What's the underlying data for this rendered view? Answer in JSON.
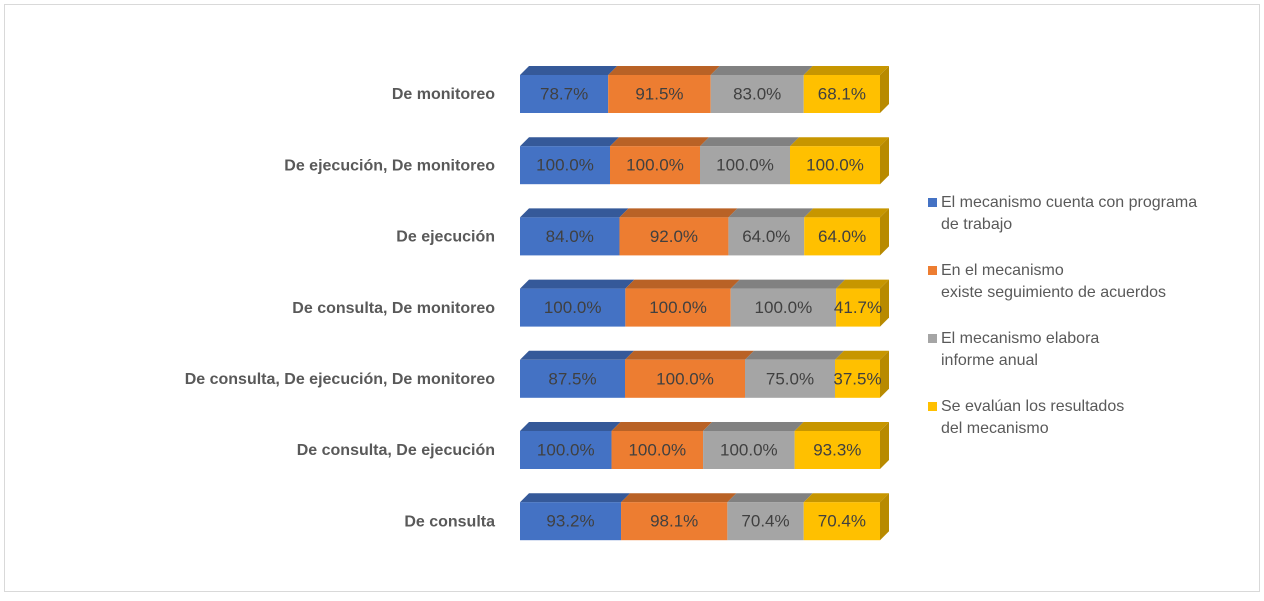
{
  "chart_data": {
    "type": "bar_stacked_100_horizontal_3d",
    "categories": [
      "De monitoreo",
      "De ejecución, De monitoreo",
      "De ejecución",
      "De consulta, De monitoreo",
      "De consulta, De ejecución, De monitoreo",
      "De consulta, De ejecución",
      "De consulta"
    ],
    "series": [
      {
        "name": "El mecanismo cuenta con programa\nde trabajo",
        "color": "#4472c4",
        "values": [
          78.7,
          100.0,
          84.0,
          100.0,
          87.5,
          100.0,
          93.2
        ],
        "value_labels": [
          "78.7%",
          "100.0%",
          "84.0%",
          "100.0%",
          "87.5%",
          "100.0%",
          "93.2%"
        ]
      },
      {
        "name": "En el mecanismo\nexiste seguimiento de acuerdos",
        "color": "#ed7d31",
        "values": [
          91.5,
          100.0,
          92.0,
          100.0,
          100.0,
          100.0,
          98.1
        ],
        "value_labels": [
          "91.5%",
          "100.0%",
          "92.0%",
          "100.0%",
          "100.0%",
          "100.0%",
          "98.1%"
        ]
      },
      {
        "name": "El mecanismo elabora\ninforme anual",
        "color": "#a5a5a5",
        "values": [
          83.0,
          100.0,
          64.0,
          100.0,
          75.0,
          100.0,
          70.4
        ],
        "value_labels": [
          "83.0%",
          "100.0%",
          "64.0%",
          "100.0%",
          "75.0%",
          "100.0%",
          "70.4%"
        ]
      },
      {
        "name": " Se evalúan los resultados\ndel mecanismo",
        "color": "#ffc000",
        "values": [
          68.1,
          100.0,
          64.0,
          41.7,
          37.5,
          93.3,
          70.4
        ],
        "value_labels": [
          "68.1%",
          "100.0%",
          "64.0%",
          "41.7%",
          "37.5%",
          "93.3%",
          "70.4%"
        ]
      }
    ],
    "legend": "right"
  }
}
